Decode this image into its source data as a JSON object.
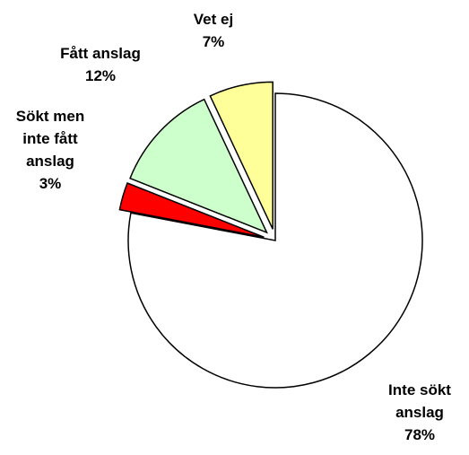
{
  "chart_data": {
    "type": "pie",
    "categories": [
      "Inte sökt anslag",
      "Sökt men inte fått anslag",
      "Fått anslag",
      "Vet ej"
    ],
    "values": [
      78,
      3,
      12,
      7
    ],
    "value_labels": [
      "78%",
      "3%",
      "12%",
      "7%"
    ],
    "colors": [
      "#ffffff",
      "#ff0000",
      "#ccffcc",
      "#ffff99"
    ]
  }
}
